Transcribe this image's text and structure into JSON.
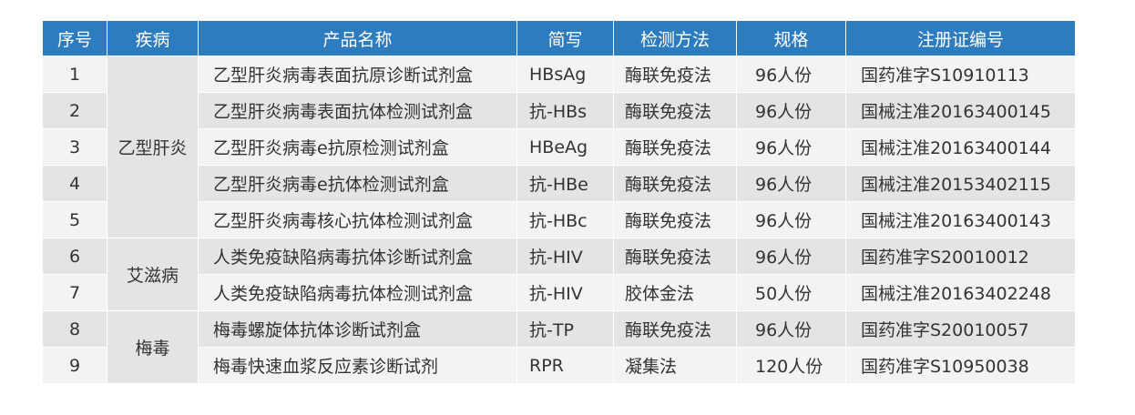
{
  "headers": [
    "序号",
    "疾病",
    "产品名称",
    "简写",
    "检测方法",
    "规格",
    "注册证编号"
  ],
  "diseases": [
    "乙型肝炎",
    "艾滋病",
    "梅毒"
  ],
  "rows": [
    {
      "seq": "1",
      "name": "乙型肝炎病毒表面抗原诊断试剂盒",
      "abbr": "HBsAg",
      "method": "酶联免疫法",
      "spec": "96人份",
      "reg": "国药准字S10910113"
    },
    {
      "seq": "2",
      "name": "乙型肝炎病毒表面抗体检测试剂盒",
      "abbr": "抗-HBs",
      "method": "酶联免疫法",
      "spec": "96人份",
      "reg": "国械注准20163400145"
    },
    {
      "seq": "3",
      "name": "乙型肝炎病毒e抗原检测试剂盒",
      "abbr": "HBeAg",
      "method": "酶联免疫法",
      "spec": "96人份",
      "reg": "国械注准20163400144"
    },
    {
      "seq": "4",
      "name": "乙型肝炎病毒e抗体检测试剂盒",
      "abbr": "抗-HBe",
      "method": "酶联免疫法",
      "spec": "96人份",
      "reg": "国械注准20153402115"
    },
    {
      "seq": "5",
      "name": "乙型肝炎病毒核心抗体检测试剂盒",
      "abbr": "抗-HBc",
      "method": "酶联免疫法",
      "spec": "96人份",
      "reg": "国械注准20163400143"
    },
    {
      "seq": "6",
      "name": "人类免疫缺陷病毒抗体诊断试剂盒",
      "abbr": "抗-HIV",
      "method": "酶联免疫法",
      "spec": "96人份",
      "reg": "国药准字S20010012"
    },
    {
      "seq": "7",
      "name": "人类免疫缺陷病毒抗体检测试剂盒",
      "abbr": "抗-HIV",
      "method": "胶体金法",
      "spec": "50人份",
      "reg": "国械注准20163402248"
    },
    {
      "seq": "8",
      "name": "梅毒螺旋体抗体诊断试剂盒",
      "abbr": "抗-TP",
      "method": "酶联免疫法",
      "spec": "96人份",
      "reg": "国药准字S20010057"
    },
    {
      "seq": "9",
      "name": "梅毒快速血浆反应素诊断试剂",
      "abbr": "RPR",
      "method": "凝集法",
      "spec": "120人份",
      "reg": "国药准字S10950038"
    }
  ],
  "colors": {
    "header_bg": "#2e7cc0",
    "header_text": "#ffffff",
    "row_light": "#f3f3f3",
    "row_dark": "#e4e4e4",
    "text": "#333333"
  }
}
